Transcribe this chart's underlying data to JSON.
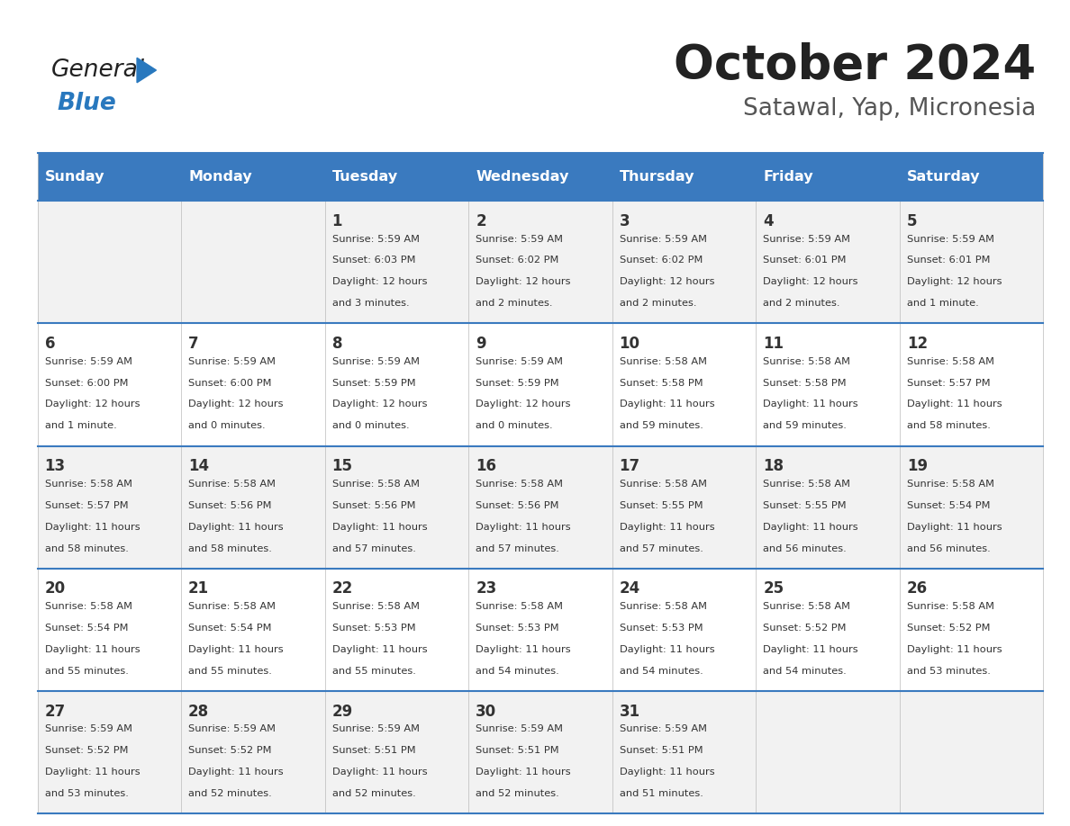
{
  "title": "October 2024",
  "subtitle": "Satawal, Yap, Micronesia",
  "header_bg": "#3a7abf",
  "header_text_color": "#ffffff",
  "days_of_week": [
    "Sunday",
    "Monday",
    "Tuesday",
    "Wednesday",
    "Thursday",
    "Friday",
    "Saturday"
  ],
  "row_bg_odd": "#f2f2f2",
  "row_bg_even": "#ffffff",
  "cell_text_color": "#333333",
  "grid_line_color": "#3a7abf",
  "title_color": "#222222",
  "subtitle_color": "#555555",
  "calendar": [
    [
      {
        "day": "",
        "sunrise": "",
        "sunset": "",
        "daylight": ""
      },
      {
        "day": "",
        "sunrise": "",
        "sunset": "",
        "daylight": ""
      },
      {
        "day": "1",
        "sunrise": "5:59 AM",
        "sunset": "6:03 PM",
        "daylight": "12 hours and 3 minutes."
      },
      {
        "day": "2",
        "sunrise": "5:59 AM",
        "sunset": "6:02 PM",
        "daylight": "12 hours and 2 minutes."
      },
      {
        "day": "3",
        "sunrise": "5:59 AM",
        "sunset": "6:02 PM",
        "daylight": "12 hours and 2 minutes."
      },
      {
        "day": "4",
        "sunrise": "5:59 AM",
        "sunset": "6:01 PM",
        "daylight": "12 hours and 2 minutes."
      },
      {
        "day": "5",
        "sunrise": "5:59 AM",
        "sunset": "6:01 PM",
        "daylight": "12 hours and 1 minute."
      }
    ],
    [
      {
        "day": "6",
        "sunrise": "5:59 AM",
        "sunset": "6:00 PM",
        "daylight": "12 hours and 1 minute."
      },
      {
        "day": "7",
        "sunrise": "5:59 AM",
        "sunset": "6:00 PM",
        "daylight": "12 hours and 0 minutes."
      },
      {
        "day": "8",
        "sunrise": "5:59 AM",
        "sunset": "5:59 PM",
        "daylight": "12 hours and 0 minutes."
      },
      {
        "day": "9",
        "sunrise": "5:59 AM",
        "sunset": "5:59 PM",
        "daylight": "12 hours and 0 minutes."
      },
      {
        "day": "10",
        "sunrise": "5:58 AM",
        "sunset": "5:58 PM",
        "daylight": "11 hours and 59 minutes."
      },
      {
        "day": "11",
        "sunrise": "5:58 AM",
        "sunset": "5:58 PM",
        "daylight": "11 hours and 59 minutes."
      },
      {
        "day": "12",
        "sunrise": "5:58 AM",
        "sunset": "5:57 PM",
        "daylight": "11 hours and 58 minutes."
      }
    ],
    [
      {
        "day": "13",
        "sunrise": "5:58 AM",
        "sunset": "5:57 PM",
        "daylight": "11 hours and 58 minutes."
      },
      {
        "day": "14",
        "sunrise": "5:58 AM",
        "sunset": "5:56 PM",
        "daylight": "11 hours and 58 minutes."
      },
      {
        "day": "15",
        "sunrise": "5:58 AM",
        "sunset": "5:56 PM",
        "daylight": "11 hours and 57 minutes."
      },
      {
        "day": "16",
        "sunrise": "5:58 AM",
        "sunset": "5:56 PM",
        "daylight": "11 hours and 57 minutes."
      },
      {
        "day": "17",
        "sunrise": "5:58 AM",
        "sunset": "5:55 PM",
        "daylight": "11 hours and 57 minutes."
      },
      {
        "day": "18",
        "sunrise": "5:58 AM",
        "sunset": "5:55 PM",
        "daylight": "11 hours and 56 minutes."
      },
      {
        "day": "19",
        "sunrise": "5:58 AM",
        "sunset": "5:54 PM",
        "daylight": "11 hours and 56 minutes."
      }
    ],
    [
      {
        "day": "20",
        "sunrise": "5:58 AM",
        "sunset": "5:54 PM",
        "daylight": "11 hours and 55 minutes."
      },
      {
        "day": "21",
        "sunrise": "5:58 AM",
        "sunset": "5:54 PM",
        "daylight": "11 hours and 55 minutes."
      },
      {
        "day": "22",
        "sunrise": "5:58 AM",
        "sunset": "5:53 PM",
        "daylight": "11 hours and 55 minutes."
      },
      {
        "day": "23",
        "sunrise": "5:58 AM",
        "sunset": "5:53 PM",
        "daylight": "11 hours and 54 minutes."
      },
      {
        "day": "24",
        "sunrise": "5:58 AM",
        "sunset": "5:53 PM",
        "daylight": "11 hours and 54 minutes."
      },
      {
        "day": "25",
        "sunrise": "5:58 AM",
        "sunset": "5:52 PM",
        "daylight": "11 hours and 54 minutes."
      },
      {
        "day": "26",
        "sunrise": "5:58 AM",
        "sunset": "5:52 PM",
        "daylight": "11 hours and 53 minutes."
      }
    ],
    [
      {
        "day": "27",
        "sunrise": "5:59 AM",
        "sunset": "5:52 PM",
        "daylight": "11 hours and 53 minutes."
      },
      {
        "day": "28",
        "sunrise": "5:59 AM",
        "sunset": "5:52 PM",
        "daylight": "11 hours and 52 minutes."
      },
      {
        "day": "29",
        "sunrise": "5:59 AM",
        "sunset": "5:51 PM",
        "daylight": "11 hours and 52 minutes."
      },
      {
        "day": "30",
        "sunrise": "5:59 AM",
        "sunset": "5:51 PM",
        "daylight": "11 hours and 52 minutes."
      },
      {
        "day": "31",
        "sunrise": "5:59 AM",
        "sunset": "5:51 PM",
        "daylight": "11 hours and 51 minutes."
      },
      {
        "day": "",
        "sunrise": "",
        "sunset": "",
        "daylight": ""
      },
      {
        "day": "",
        "sunrise": "",
        "sunset": "",
        "daylight": ""
      }
    ]
  ],
  "logo_general_color": "#222222",
  "logo_blue_color": "#2878be",
  "figsize": [
    11.88,
    9.18
  ]
}
